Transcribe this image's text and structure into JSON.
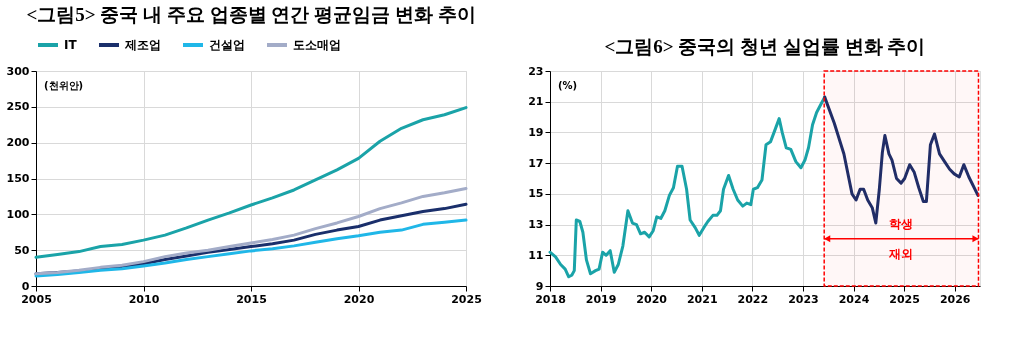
{
  "chart_data": [
    {
      "type": "line",
      "title": "<그림5> 중국 내 주요 업종별 연간 평균임금 변화 추이",
      "ylabel": "(천위안)",
      "x": [
        2005,
        2006,
        2007,
        2008,
        2009,
        2010,
        2011,
        2012,
        2013,
        2014,
        2015,
        2016,
        2017,
        2018,
        2019,
        2020,
        2021,
        2022,
        2023,
        2024,
        2025
      ],
      "series": [
        {
          "name": "IT",
          "color": "#1aa3a8",
          "values": [
            40,
            44,
            48,
            55,
            58,
            64,
            71,
            81,
            92,
            102,
            113,
            123,
            134,
            148,
            162,
            178,
            202,
            220,
            232,
            239,
            249
          ]
        },
        {
          "name": "제조업",
          "color": "#1a2f6b",
          "values": [
            17,
            19,
            21,
            24,
            27,
            31,
            37,
            42,
            47,
            51,
            55,
            59,
            64,
            72,
            78,
            83,
            92,
            98,
            104,
            108,
            114
          ]
        },
        {
          "name": "건설업",
          "color": "#20b7e8",
          "values": [
            14,
            16,
            19,
            22,
            24,
            28,
            32,
            37,
            41,
            45,
            49,
            52,
            56,
            61,
            66,
            70,
            75,
            78,
            86,
            89,
            92
          ]
        },
        {
          "name": "도소매업",
          "color": "#a3acc8",
          "values": [
            17,
            19,
            22,
            26,
            29,
            34,
            41,
            46,
            50,
            55,
            60,
            65,
            71,
            80,
            88,
            97,
            108,
            116,
            125,
            130,
            136
          ]
        }
      ],
      "xlim": [
        2005,
        2025
      ],
      "xticks": [
        2005,
        2010,
        2015,
        2020,
        2025
      ],
      "ylim": [
        0,
        300
      ],
      "yticks": [
        0,
        50,
        100,
        150,
        200,
        250,
        300
      ],
      "grid": true,
      "legend": "top"
    },
    {
      "type": "line",
      "title": "<그림6> 중국의 청년 실업률 변화 추이",
      "ylabel": "(%)",
      "series": [
        {
          "color": "#1aa3a8",
          "x": [
            2018.0,
            2018.11,
            2018.21,
            2018.3,
            2018.37,
            2018.43,
            2018.48,
            2018.52,
            2018.59,
            2018.65,
            2018.72,
            2018.8,
            2018.9,
            2018.97,
            2019.04,
            2019.11,
            2019.19,
            2019.27,
            2019.35,
            2019.44,
            2019.54,
            2019.63,
            2019.71,
            2019.79,
            2019.87,
            2019.96,
            2020.04,
            2020.11,
            2020.19,
            2020.27,
            2020.36,
            2020.44,
            2020.52,
            2020.61,
            2020.7,
            2020.77,
            2020.87,
            2020.95,
            2021.04,
            2021.12,
            2021.22,
            2021.3,
            2021.37,
            2021.43,
            2021.53,
            2021.62,
            2021.71,
            2021.81,
            2021.89,
            2021.97,
            2022.02,
            2022.1,
            2022.19,
            2022.27,
            2022.36,
            2022.44,
            2022.53,
            2022.59,
            2022.67,
            2022.76,
            2022.86,
            2022.96,
            2023.04,
            2023.11,
            2023.19,
            2023.27,
            2023.35,
            2023.43
          ],
          "values": [
            11.2,
            10.9,
            10.4,
            10.1,
            9.6,
            9.7,
            10.0,
            13.3,
            13.2,
            12.5,
            10.7,
            9.8,
            10.0,
            10.1,
            11.2,
            11.0,
            11.3,
            9.9,
            10.4,
            11.6,
            13.9,
            13.1,
            13.0,
            12.4,
            12.5,
            12.2,
            12.6,
            13.5,
            13.4,
            13.9,
            14.9,
            15.4,
            16.8,
            16.8,
            15.3,
            13.3,
            12.8,
            12.3,
            12.8,
            13.2,
            13.6,
            13.6,
            13.9,
            15.3,
            16.2,
            15.3,
            14.6,
            14.2,
            14.4,
            14.3,
            15.3,
            15.4,
            15.9,
            18.2,
            18.4,
            19.1,
            19.9,
            19.0,
            18.0,
            17.9,
            17.1,
            16.7,
            17.2,
            18.0,
            19.5,
            20.3,
            20.8,
            21.3
          ]
        },
        {
          "color": "#1a2f6b",
          "x": [
            2023.43,
            2023.62,
            2023.81,
            2023.97,
            2024.05,
            2024.13,
            2024.2,
            2024.28,
            2024.37,
            2024.44,
            2024.51,
            2024.57,
            2024.62,
            2024.7,
            2024.76,
            2024.85,
            2024.94,
            2025.01,
            2025.11,
            2025.2,
            2025.29,
            2025.38,
            2025.44,
            2025.52,
            2025.6,
            2025.7,
            2025.8,
            2025.9,
            2025.99,
            2026.09,
            2026.18,
            2026.28,
            2026.46
          ],
          "values": [
            21.3,
            19.6,
            17.6,
            15.0,
            14.6,
            15.3,
            15.3,
            14.6,
            14.1,
            13.1,
            15.3,
            17.7,
            18.8,
            17.6,
            17.2,
            16.0,
            15.7,
            16.0,
            16.9,
            16.4,
            15.4,
            14.5,
            14.5,
            18.2,
            18.9,
            17.6,
            17.1,
            16.6,
            16.3,
            16.1,
            16.9,
            16.1,
            14.9
          ]
        }
      ],
      "xlim": [
        2018,
        2026.5
      ],
      "xticks": [
        2018,
        2019,
        2020,
        2021,
        2022,
        2023,
        2024,
        2025,
        2026
      ],
      "ylim": [
        9,
        23
      ],
      "yticks": [
        9,
        11,
        13,
        15,
        17,
        19,
        21,
        23
      ],
      "grid": true,
      "bands": [
        {
          "axis": "x",
          "from": 2023.42,
          "to": 2026.47,
          "label": "학생 재외",
          "color": "#ff0000"
        }
      ]
    }
  ]
}
